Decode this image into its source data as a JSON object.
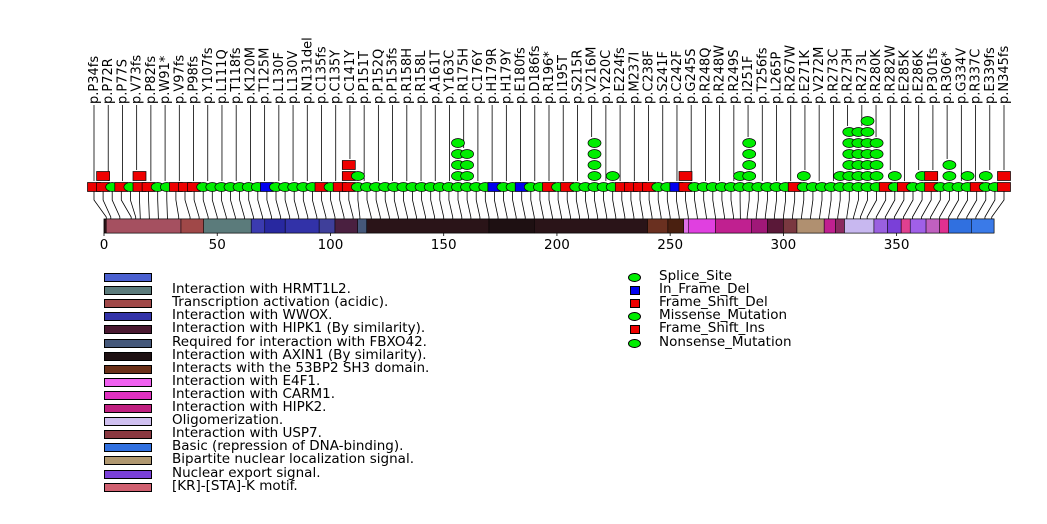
{
  "chart_data": {
    "type": "lollipop",
    "title": "",
    "xlabel": "",
    "ylabel": "",
    "xlim": [
      0,
      393
    ],
    "axis_ticks": [
      0,
      50,
      100,
      150,
      200,
      250,
      300,
      350
    ],
    "mutation_labels": [
      "p.P34fs",
      "p.P72R",
      "p.P77S",
      "p.V73fs",
      "p.P82fs",
      "p.W91*",
      "p.V97fs",
      "p.P98fs",
      "p.Y107fs",
      "p.L111Q",
      "p.T118fs",
      "p.K120M",
      "p.T125M",
      "p.L130F",
      "p.L130V",
      "p.N131del",
      "p.C135fs",
      "p.C135Y",
      "p.C141Y",
      "p.P151T",
      "p.P152Q",
      "p.P153fs",
      "p.R158H",
      "p.R158L",
      "p.A161T",
      "p.Y163C",
      "p.R175H",
      "p.C176Y",
      "p.H179R",
      "p.H179Y",
      "p.E180fs",
      "p.D186fs",
      "p.R196*",
      "p.I195T",
      "p.S215R",
      "p.V216M",
      "p.Y220C",
      "p.E224fs",
      "p.M237I",
      "p.C238F",
      "p.S241F",
      "p.C242F",
      "p.G245S",
      "p.R248Q",
      "p.R248W",
      "p.R249S",
      "p.I251F",
      "p.T256fs",
      "p.L265P",
      "p.R267W",
      "p.E271K",
      "p.V272M",
      "p.R273C",
      "p.R273H",
      "p.R273L",
      "p.R280K",
      "p.R282W",
      "p.E285K",
      "p.E286K",
      "p.P301fs",
      "p.R306*",
      "p.G334V",
      "p.R337C",
      "p.E339fs",
      "p.N345fs"
    ],
    "mutations": [
      {
        "pos": 1,
        "count": 1,
        "type": "Frame_Shift_Del",
        "color": "#ee0000"
      },
      {
        "pos": 3,
        "count": 2,
        "type": "Frame_Shift_Del",
        "color": "#ee0000"
      },
      {
        "pos": 7,
        "count": 1,
        "type": "Missense_Mutation",
        "color": "#00ee00"
      },
      {
        "pos": 12,
        "count": 1,
        "type": "Frame_Shift_Del",
        "color": "#ee0000"
      },
      {
        "pos": 14,
        "count": 1,
        "type": "Missense_Mutation",
        "color": "#00ee00"
      },
      {
        "pos": 16,
        "count": 2,
        "type": "Frame_Shift_Del",
        "color": "#ee0000"
      },
      {
        "pos": 20,
        "count": 1,
        "type": "Frame_Shift_Del",
        "color": "#ee0000"
      },
      {
        "pos": 24,
        "count": 1,
        "type": "Missense_Mutation",
        "color": "#00ee00"
      },
      {
        "pos": 28,
        "count": 1,
        "type": "Missense_Mutation",
        "color": "#00ee00"
      },
      {
        "pos": 33,
        "count": 1,
        "type": "Frame_Shift_Del",
        "color": "#ee0000"
      },
      {
        "pos": 38,
        "count": 1,
        "type": "Frame_Shift_Del",
        "color": "#ee0000"
      },
      {
        "pos": 42,
        "count": 1,
        "type": "Frame_Shift_Del",
        "color": "#ee0000"
      },
      {
        "pos": 46,
        "count": 1,
        "type": "Missense_Mutation",
        "color": "#00ee00"
      },
      {
        "pos": 50,
        "count": 1,
        "type": "Missense_Mutation",
        "color": "#00ee00"
      },
      {
        "pos": 54,
        "count": 1,
        "type": "Missense_Mutation",
        "color": "#00ee00"
      },
      {
        "pos": 58,
        "count": 1,
        "type": "Missense_Mutation",
        "color": "#00ee00"
      },
      {
        "pos": 62,
        "count": 1,
        "type": "Missense_Mutation",
        "color": "#00ee00"
      },
      {
        "pos": 66,
        "count": 1,
        "type": "Missense_Mutation",
        "color": "#00ee00"
      },
      {
        "pos": 70,
        "count": 1,
        "type": "Missense_Mutation",
        "color": "#00ee00"
      },
      {
        "pos": 74,
        "count": 1,
        "type": "In_Frame_Del",
        "color": "#0000ee"
      },
      {
        "pos": 78,
        "count": 1,
        "type": "Missense_Mutation",
        "color": "#00ee00"
      },
      {
        "pos": 82,
        "count": 1,
        "type": "Missense_Mutation",
        "color": "#00ee00"
      },
      {
        "pos": 86,
        "count": 1,
        "type": "Missense_Mutation",
        "color": "#00ee00"
      },
      {
        "pos": 90,
        "count": 1,
        "type": "Missense_Mutation",
        "color": "#00ee00"
      },
      {
        "pos": 94,
        "count": 1,
        "type": "Missense_Mutation",
        "color": "#00ee00"
      },
      {
        "pos": 98,
        "count": 1,
        "type": "Frame_Shift_Ins",
        "color": "#ee0000"
      },
      {
        "pos": 102,
        "count": 1,
        "type": "Missense_Mutation",
        "color": "#00ee00"
      },
      {
        "pos": 106,
        "count": 1,
        "type": "Frame_Shift_Del",
        "color": "#ee0000"
      },
      {
        "pos": 110,
        "count": 3,
        "type": "Frame_Shift_Del",
        "color": "#ee0000"
      },
      {
        "pos": 113,
        "count": 2,
        "type": "Missense_Mutation",
        "color": "#00ee00"
      },
      {
        "pos": 118,
        "count": 1,
        "type": "Missense_Mutation",
        "color": "#00ee00"
      },
      {
        "pos": 122,
        "count": 1,
        "type": "Missense_Mutation",
        "color": "#00ee00"
      },
      {
        "pos": 126,
        "count": 1,
        "type": "Missense_Mutation",
        "color": "#00ee00"
      },
      {
        "pos": 130,
        "count": 1,
        "type": "Missense_Mutation",
        "color": "#00ee00"
      },
      {
        "pos": 134,
        "count": 1,
        "type": "Missense_Mutation",
        "color": "#00ee00"
      },
      {
        "pos": 138,
        "count": 1,
        "type": "Missense_Mutation",
        "color": "#00ee00"
      },
      {
        "pos": 142,
        "count": 1,
        "type": "Missense_Mutation",
        "color": "#00ee00"
      },
      {
        "pos": 146,
        "count": 1,
        "type": "Missense_Mutation",
        "color": "#00ee00"
      },
      {
        "pos": 150,
        "count": 1,
        "type": "Missense_Mutation",
        "color": "#00ee00"
      },
      {
        "pos": 154,
        "count": 1,
        "type": "Missense_Mutation",
        "color": "#00ee00"
      },
      {
        "pos": 158,
        "count": 5,
        "type": "Missense_Mutation",
        "color": "#00ee00"
      },
      {
        "pos": 162,
        "count": 4,
        "type": "Missense_Mutation",
        "color": "#00ee00"
      },
      {
        "pos": 166,
        "count": 1,
        "type": "Missense_Mutation",
        "color": "#00ee00"
      },
      {
        "pos": 170,
        "count": 1,
        "type": "Missense_Mutation",
        "color": "#00ee00"
      },
      {
        "pos": 174,
        "count": 1,
        "type": "In_Frame_Del",
        "color": "#0000ee"
      },
      {
        "pos": 178,
        "count": 1,
        "type": "Missense_Mutation",
        "color": "#00ee00"
      },
      {
        "pos": 182,
        "count": 1,
        "type": "Missense_Mutation",
        "color": "#00ee00"
      },
      {
        "pos": 186,
        "count": 1,
        "type": "In_Frame_Del",
        "color": "#0000ee"
      },
      {
        "pos": 190,
        "count": 1,
        "type": "Missense_Mutation",
        "color": "#00ee00"
      },
      {
        "pos": 194,
        "count": 1,
        "type": "Missense_Mutation",
        "color": "#00ee00"
      },
      {
        "pos": 198,
        "count": 1,
        "type": "Frame_Shift_Del",
        "color": "#ee0000"
      },
      {
        "pos": 202,
        "count": 1,
        "type": "Missense_Mutation",
        "color": "#00ee00"
      },
      {
        "pos": 206,
        "count": 1,
        "type": "Frame_Shift_Del",
        "color": "#ee0000"
      },
      {
        "pos": 210,
        "count": 1,
        "type": "Missense_Mutation",
        "color": "#00ee00"
      },
      {
        "pos": 214,
        "count": 1,
        "type": "Missense_Mutation",
        "color": "#00ee00"
      },
      {
        "pos": 218,
        "count": 5,
        "type": "Missense_Mutation",
        "color": "#00ee00"
      },
      {
        "pos": 222,
        "count": 1,
        "type": "Missense_Mutation",
        "color": "#00ee00"
      },
      {
        "pos": 226,
        "count": 2,
        "type": "Missense_Mutation",
        "color": "#00ee00"
      },
      {
        "pos": 230,
        "count": 1,
        "type": "Frame_Shift_Del",
        "color": "#ee0000"
      },
      {
        "pos": 234,
        "count": 1,
        "type": "Frame_Shift_Del",
        "color": "#ee0000"
      },
      {
        "pos": 238,
        "count": 1,
        "type": "Frame_Shift_Del",
        "color": "#ee0000"
      },
      {
        "pos": 242,
        "count": 1,
        "type": "Frame_Shift_Del",
        "color": "#ee0000"
      },
      {
        "pos": 246,
        "count": 1,
        "type": "Missense_Mutation",
        "color": "#00ee00"
      },
      {
        "pos": 250,
        "count": 1,
        "type": "Missense_Mutation",
        "color": "#00ee00"
      },
      {
        "pos": 254,
        "count": 1,
        "type": "In_Frame_Del",
        "color": "#0000ee"
      },
      {
        "pos": 258,
        "count": 2,
        "type": "Frame_Shift_Del",
        "color": "#ee0000"
      },
      {
        "pos": 262,
        "count": 1,
        "type": "Missense_Mutation",
        "color": "#00ee00"
      },
      {
        "pos": 266,
        "count": 1,
        "type": "Missense_Mutation",
        "color": "#00ee00"
      },
      {
        "pos": 270,
        "count": 1,
        "type": "Missense_Mutation",
        "color": "#00ee00"
      },
      {
        "pos": 274,
        "count": 1,
        "type": "Missense_Mutation",
        "color": "#00ee00"
      },
      {
        "pos": 278,
        "count": 1,
        "type": "Missense_Mutation",
        "color": "#00ee00"
      },
      {
        "pos": 281,
        "count": 2,
        "type": "Missense_Mutation",
        "color": "#00ee00"
      },
      {
        "pos": 284,
        "count": 5,
        "type": "Missense_Mutation",
        "color": "#00ee00"
      },
      {
        "pos": 288,
        "count": 1,
        "type": "Missense_Mutation",
        "color": "#00ee00"
      },
      {
        "pos": 292,
        "count": 1,
        "type": "Missense_Mutation",
        "color": "#00ee00"
      },
      {
        "pos": 296,
        "count": 1,
        "type": "Missense_Mutation",
        "color": "#00ee00"
      },
      {
        "pos": 300,
        "count": 1,
        "type": "Missense_Mutation",
        "color": "#00ee00"
      },
      {
        "pos": 304,
        "count": 1,
        "type": "Frame_Shift_Del",
        "color": "#ee0000"
      },
      {
        "pos": 308,
        "count": 2,
        "type": "Missense_Mutation",
        "color": "#00ee00"
      },
      {
        "pos": 312,
        "count": 1,
        "type": "Missense_Mutation",
        "color": "#00ee00"
      },
      {
        "pos": 316,
        "count": 1,
        "type": "Missense_Mutation",
        "color": "#00ee00"
      },
      {
        "pos": 320,
        "count": 1,
        "type": "Missense_Mutation",
        "color": "#00ee00"
      },
      {
        "pos": 324,
        "count": 2,
        "type": "Missense_Mutation",
        "color": "#00ee00"
      },
      {
        "pos": 328,
        "count": 6,
        "type": "Missense_Mutation",
        "color": "#00ee00"
      },
      {
        "pos": 331,
        "count": 6,
        "type": "Missense_Mutation",
        "color": "#00ee00"
      },
      {
        "pos": 334,
        "count": 7,
        "type": "Missense_Mutation",
        "color": "#00ee00"
      },
      {
        "pos": 337,
        "count": 5,
        "type": "Missense_Mutation",
        "color": "#00ee00"
      },
      {
        "pos": 341,
        "count": 1,
        "type": "Frame_Shift_Del",
        "color": "#ee0000"
      },
      {
        "pos": 345,
        "count": 2,
        "type": "Missense_Mutation",
        "color": "#00ee00"
      },
      {
        "pos": 349,
        "count": 1,
        "type": "Frame_Shift_Del",
        "color": "#ee0000"
      },
      {
        "pos": 353,
        "count": 1,
        "type": "Missense_Mutation",
        "color": "#00ee00"
      },
      {
        "pos": 357,
        "count": 2,
        "type": "Missense_Mutation",
        "color": "#00ee00"
      },
      {
        "pos": 361,
        "count": 2,
        "type": "Frame_Shift_Del",
        "color": "#ee0000"
      },
      {
        "pos": 365,
        "count": 1,
        "type": "Missense_Mutation",
        "color": "#00ee00"
      },
      {
        "pos": 369,
        "count": 3,
        "type": "Missense_Mutation",
        "color": "#00ee00"
      },
      {
        "pos": 373,
        "count": 1,
        "type": "Missense_Mutation",
        "color": "#00ee00"
      },
      {
        "pos": 377,
        "count": 2,
        "type": "Missense_Mutation",
        "color": "#00ee00"
      },
      {
        "pos": 381,
        "count": 1,
        "type": "Frame_Shift_Del",
        "color": "#ee0000"
      },
      {
        "pos": 385,
        "count": 2,
        "type": "Missense_Mutation",
        "color": "#00ee00"
      },
      {
        "pos": 389,
        "count": 1,
        "type": "Missense_Mutation",
        "color": "#00ee00"
      },
      {
        "pos": 392,
        "count": 2,
        "type": "Frame_Shift_Del",
        "color": "#ee0000"
      }
    ],
    "domains": [
      {
        "start": 1,
        "end": 34,
        "color": "#a55060"
      },
      {
        "start": 34,
        "end": 44,
        "color": "#a04848"
      },
      {
        "start": 44,
        "end": 65,
        "color": "#5b7b7b"
      },
      {
        "start": 65,
        "end": 71,
        "color": "#3b3bb0"
      },
      {
        "start": 71,
        "end": 80,
        "color": "#2828a0"
      },
      {
        "start": 80,
        "end": 95,
        "color": "#3232a8"
      },
      {
        "start": 95,
        "end": 102,
        "color": "#3f3f9a"
      },
      {
        "start": 102,
        "end": 112,
        "color": "#4a2040"
      },
      {
        "start": 112,
        "end": 116,
        "color": "#45587a"
      },
      {
        "start": 116,
        "end": 170,
        "color": "#2a1418"
      },
      {
        "start": 170,
        "end": 190,
        "color": "#1e1012"
      },
      {
        "start": 190,
        "end": 240,
        "color": "#2a1418"
      },
      {
        "start": 240,
        "end": 249,
        "color": "#6a3020"
      },
      {
        "start": 249,
        "end": 256,
        "color": "#4a2010"
      },
      {
        "start": 256,
        "end": 258,
        "color": "#e070e8"
      },
      {
        "start": 258,
        "end": 270,
        "color": "#e040e0"
      },
      {
        "start": 270,
        "end": 286,
        "color": "#c02090"
      },
      {
        "start": 286,
        "end": 293,
        "color": "#a01878"
      },
      {
        "start": 293,
        "end": 300,
        "color": "#5a1838"
      },
      {
        "start": 300,
        "end": 306,
        "color": "#7a3840"
      },
      {
        "start": 306,
        "end": 318,
        "color": "#b09070"
      },
      {
        "start": 318,
        "end": 323,
        "color": "#c02090"
      },
      {
        "start": 323,
        "end": 327,
        "color": "#8a2a60"
      },
      {
        "start": 327,
        "end": 340,
        "color": "#c8b8f0"
      },
      {
        "start": 340,
        "end": 346,
        "color": "#9a60e0"
      },
      {
        "start": 346,
        "end": 352,
        "color": "#7a40d8"
      },
      {
        "start": 352,
        "end": 356,
        "color": "#e04090"
      },
      {
        "start": 356,
        "end": 363,
        "color": "#a060e8"
      },
      {
        "start": 363,
        "end": 369,
        "color": "#c060c0"
      },
      {
        "start": 369,
        "end": 373,
        "color": "#e03090"
      },
      {
        "start": 373,
        "end": 383,
        "color": "#3070e0"
      },
      {
        "start": 383,
        "end": 393,
        "color": "#3a7ae8"
      }
    ]
  },
  "legend": {
    "domains": [
      {
        "label": "",
        "color": "#4a60d0"
      },
      {
        "label": "Interaction with HRMT1L2.",
        "color": "#5b7b7b"
      },
      {
        "label": "Transcription activation (acidic).",
        "color": "#a04848"
      },
      {
        "label": "Interaction with WWOX.",
        "color": "#3232a8"
      },
      {
        "label": "Interaction with HIPK1 (By similarity).",
        "color": "#4a1830"
      },
      {
        "label": "Required for interaction with FBXO42.",
        "color": "#45587a"
      },
      {
        "label": "Interaction with AXIN1 (By similarity).",
        "color": "#1e1012"
      },
      {
        "label": "Interacts with the 53BP2 SH3 domain.",
        "color": "#6a3018"
      },
      {
        "label": "Interaction with E4F1.",
        "color": "#f060f0"
      },
      {
        "label": "Interaction with CARM1.",
        "color": "#e030c0"
      },
      {
        "label": "Interaction with HIPK2.",
        "color": "#c02080"
      },
      {
        "label": "Oligomerization.",
        "color": "#d0c0f0"
      },
      {
        "label": "Interaction with USP7.",
        "color": "#8a3840"
      },
      {
        "label": "Basic (repression of DNA-binding).",
        "color": "#3070e0"
      },
      {
        "label": "Bipartite nuclear localization signal.",
        "color": "#b09870"
      },
      {
        "label": "Nuclear export signal.",
        "color": "#7a40d8"
      },
      {
        "label": "[KR]-[STA]-K motif.",
        "color": "#d06070"
      }
    ],
    "mutation_types": [
      {
        "label": "Splice_Site",
        "shape": "circle",
        "color": "#00ee00"
      },
      {
        "label": "In_Frame_Del",
        "shape": "square",
        "color": "#0000ee"
      },
      {
        "label": "Frame_Shift_Del",
        "shape": "square",
        "color": "#ee0000"
      },
      {
        "label": "Missense_Mutation",
        "shape": "circle",
        "color": "#00ee00"
      },
      {
        "label": "Frame_Shift_Ins",
        "shape": "square",
        "color": "#ee0000"
      },
      {
        "label": "Nonsense_Mutation",
        "shape": "circle",
        "color": "#00ee00"
      }
    ]
  }
}
